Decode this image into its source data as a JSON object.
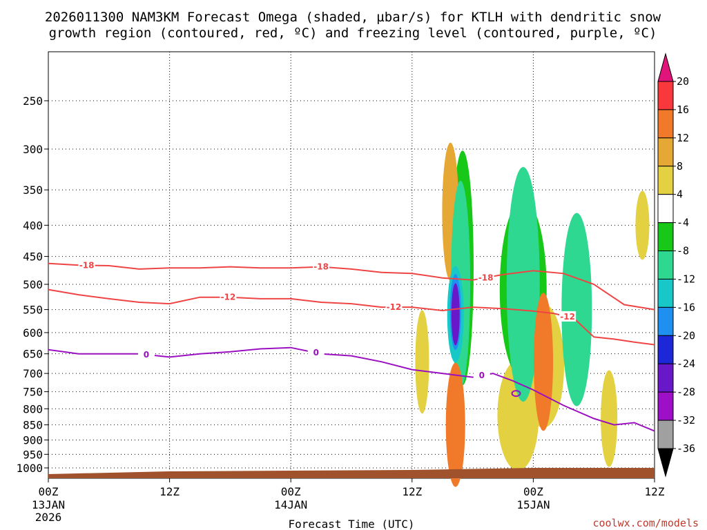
{
  "chart_data": {
    "type": "time-height cross-section",
    "title_line1": "2026011300 NAM3KM Forecast Omega (shaded, µbar/s) for KTLH with dendritic snow",
    "title_line2": "growth region (contoured, red, ºC) and freezing level (contoured, purple, ºC)",
    "xlabel": "Forecast Time (UTC)",
    "credit": "coolwx.com/models",
    "y_axis": {
      "unit": "hPa",
      "ticks": [
        250,
        300,
        350,
        400,
        450,
        500,
        550,
        600,
        650,
        700,
        750,
        800,
        850,
        900,
        950,
        1000
      ],
      "range": [
        200,
        1050
      ]
    },
    "x_axis": {
      "unit": "hours since 2026-01-13 00Z",
      "range": [
        0,
        60
      ],
      "ticks": [
        {
          "hour": 0,
          "label": "00Z",
          "sub1": "13JAN",
          "sub2": "2026"
        },
        {
          "hour": 12,
          "label": "12Z",
          "sub1": "",
          "sub2": ""
        },
        {
          "hour": 24,
          "label": "00Z",
          "sub1": "14JAN",
          "sub2": ""
        },
        {
          "hour": 36,
          "label": "12Z",
          "sub1": "",
          "sub2": ""
        },
        {
          "hour": 48,
          "label": "00Z",
          "sub1": "15JAN",
          "sub2": ""
        },
        {
          "hour": 60,
          "label": "12Z",
          "sub1": "",
          "sub2": ""
        }
      ]
    },
    "colorbar": {
      "labels": [
        "20",
        "16",
        "12",
        "8",
        "4",
        "-4",
        "-8",
        "-12",
        "-16",
        "-20",
        "-24",
        "-28",
        "-32",
        "-36"
      ],
      "colors": [
        "#f8383a",
        "#f07a2a",
        "#e6a834",
        "#e3d142",
        "#ffffff",
        "#18c818",
        "#2fd890",
        "#18c8c8",
        "#2090f0",
        "#1c28d8",
        "#6818c8",
        "#9e10c8",
        "#a0a0a0"
      ],
      "top_arrow_color": "#e0147a",
      "bottom_arrow_color": "#000000"
    },
    "contours": [
      {
        "name": "-18C isotherm",
        "label": "-18",
        "color": "#ef4444",
        "points": [
          [
            0,
            462
          ],
          [
            3,
            465
          ],
          [
            6,
            466
          ],
          [
            9,
            472
          ],
          [
            12,
            470
          ],
          [
            15,
            470
          ],
          [
            18,
            468
          ],
          [
            21,
            470
          ],
          [
            24,
            470
          ],
          [
            27,
            468
          ],
          [
            30,
            472
          ],
          [
            33,
            478
          ],
          [
            36,
            480
          ],
          [
            39,
            488
          ],
          [
            42,
            492
          ],
          [
            45,
            482
          ],
          [
            48,
            475
          ],
          [
            51,
            480
          ],
          [
            54,
            500
          ],
          [
            57,
            540
          ],
          [
            60,
            550
          ]
        ],
        "label_hours": [
          3.8,
          27.0,
          43.3
        ]
      },
      {
        "name": "-12C isotherm",
        "label": "-12",
        "color": "#ef4444",
        "points": [
          [
            0,
            510
          ],
          [
            3,
            520
          ],
          [
            6,
            528
          ],
          [
            9,
            535
          ],
          [
            12,
            538
          ],
          [
            15,
            525
          ],
          [
            18,
            525
          ],
          [
            21,
            528
          ],
          [
            24,
            528
          ],
          [
            27,
            535
          ],
          [
            30,
            538
          ],
          [
            33,
            545
          ],
          [
            36,
            545
          ],
          [
            39,
            552
          ],
          [
            42,
            545
          ],
          [
            45,
            548
          ],
          [
            48,
            553
          ],
          [
            50,
            558
          ],
          [
            52,
            568
          ],
          [
            54,
            610
          ],
          [
            56,
            615
          ],
          [
            58,
            622
          ],
          [
            60,
            628
          ]
        ],
        "label_hours": [
          17.8,
          34.2,
          51.4
        ]
      },
      {
        "name": "0C freezing level",
        "label": "0",
        "color": "#9a10c0",
        "points": [
          [
            0,
            640
          ],
          [
            3,
            650
          ],
          [
            6,
            650
          ],
          [
            9,
            650
          ],
          [
            12,
            658
          ],
          [
            15,
            650
          ],
          [
            18,
            645
          ],
          [
            21,
            638
          ],
          [
            24,
            635
          ],
          [
            27,
            650
          ],
          [
            30,
            655
          ],
          [
            33,
            670
          ],
          [
            36,
            690
          ],
          [
            39,
            700
          ],
          [
            42,
            710
          ],
          [
            44,
            700
          ],
          [
            46,
            720
          ],
          [
            48,
            745
          ],
          [
            51,
            790
          ],
          [
            54,
            830
          ],
          [
            56,
            850
          ],
          [
            58,
            843
          ],
          [
            60,
            870
          ]
        ],
        "label_hours": [
          9.7,
          26.5,
          42.9
        ]
      }
    ],
    "omega_shading": [
      {
        "hour": 40.3,
        "pressure": 560,
        "value": -28
      },
      {
        "hour": 40.3,
        "pressure": 555,
        "value": -20
      },
      {
        "hour": 40.3,
        "pressure": 560,
        "value": -16
      },
      {
        "hour": 40.8,
        "pressure": 500,
        "value": -12
      },
      {
        "hour": 41.0,
        "pressure": 470,
        "value": -8
      },
      {
        "hour": 47.0,
        "pressure": 500,
        "value": -12
      },
      {
        "hour": 47.0,
        "pressure": 510,
        "value": -8
      },
      {
        "hour": 52.3,
        "pressure": 550,
        "value": -12
      },
      {
        "hour": 52.3,
        "pressure": 560,
        "value": -8
      },
      {
        "hour": 39.8,
        "pressure": 380,
        "value": 8
      },
      {
        "hour": 39.8,
        "pressure": 380,
        "value": 4
      },
      {
        "hour": 40.3,
        "pressure": 850,
        "value": 12
      },
      {
        "hour": 40.3,
        "pressure": 860,
        "value": 4
      },
      {
        "hour": 37.0,
        "pressure": 670,
        "value": 4
      },
      {
        "hour": 49.0,
        "pressure": 670,
        "value": 12
      },
      {
        "hour": 49.0,
        "pressure": 680,
        "value": 4
      },
      {
        "hour": 46.5,
        "pressure": 820,
        "value": 4
      },
      {
        "hour": 55.5,
        "pressure": 830,
        "value": 4
      },
      {
        "hour": 58.8,
        "pressure": 400,
        "value": 4
      }
    ]
  }
}
